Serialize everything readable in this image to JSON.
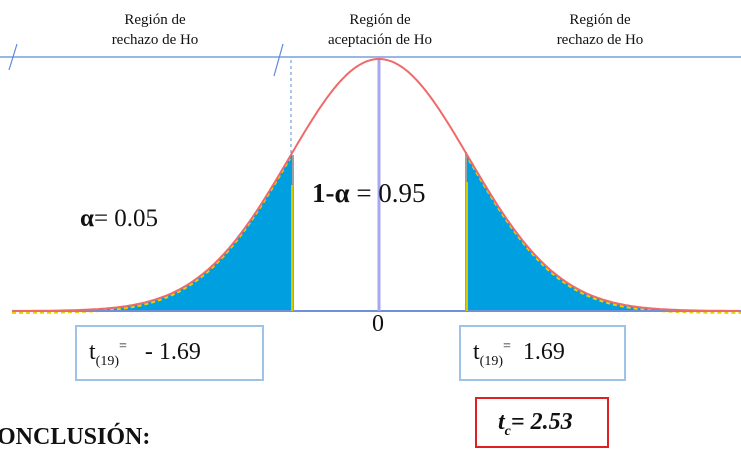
{
  "labels": {
    "left_region": [
      "Región de",
      "rechazo de Ho"
    ],
    "center_region": [
      "Región de",
      "aceptación de Ho"
    ],
    "right_region": [
      "Región de",
      "rechazo de Ho"
    ],
    "alpha_symbol": "α",
    "alpha_value": "= 0.05",
    "one_minus_alpha_symbol": "1-α",
    "one_minus_alpha_value": " = 0.95",
    "zero": "0",
    "left_t_base": "t",
    "left_t_sub": "(19)",
    "left_t_sup": "=",
    "left_t_value": "- 1.69",
    "right_t_base": "t",
    "right_t_sub": "(19)",
    "right_t_sup": "=",
    "right_t_value": "1.69",
    "tc_base": "t",
    "tc_sub": "c",
    "tc_value": "= 2.53",
    "conclusion": "ONCLUSIÓN:"
  },
  "colors": {
    "curve": "#ef6a6a",
    "tail_fill": "#00a0e0",
    "tail_edge_yellow": "#e8d000",
    "axis_line": "#6f8fd6",
    "mean_line": "#a8a8f0",
    "box_border": "#9dc3e6",
    "tc_border": "#e02020"
  }
}
